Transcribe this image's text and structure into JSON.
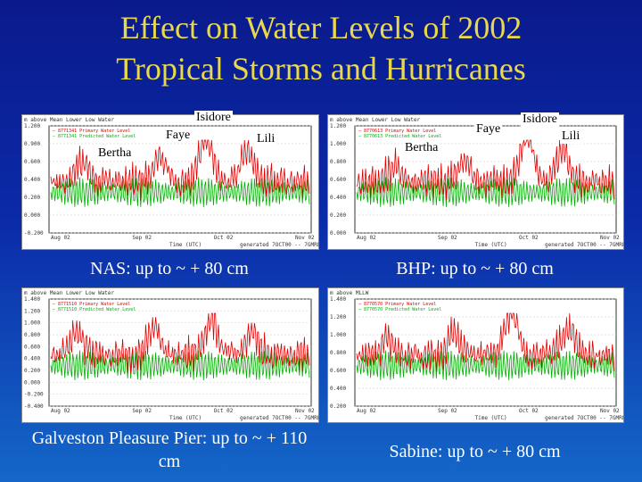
{
  "slide": {
    "title_line1": "Effect on Water Levels of 2002",
    "title_line2": "Tropical Storms and Hurricanes"
  },
  "colors": {
    "title": "#e8d84a",
    "observed": "#e00000",
    "predicted": "#00b000"
  },
  "panels": [
    {
      "id": "nas",
      "caption": "NAS: up to ~ + 80 cm",
      "ylabel": "m above Mean Lower Low Water",
      "legend": [
        "8771341 Primary Water Level",
        "8771341 Predicted Water Level"
      ],
      "yticks": [
        "1.200",
        "0.900",
        "0.600",
        "0.400",
        "0.200",
        "0.000",
        "-0.200"
      ],
      "xticks": [
        "Aug 02",
        "Sep 02",
        "Oct 02",
        "Nov 02"
      ],
      "xlabel": "Time (UTC)",
      "footer": "generated 7OCT00 -- 7GMRL4",
      "storms": [
        "Bertha",
        "Faye",
        "Isidore",
        "Lili"
      ]
    },
    {
      "id": "bhp",
      "caption": "BHP: up to ~ + 80 cm",
      "ylabel": "m above Mean Lower Low Water",
      "legend": [
        "8770613 Primary Water Level",
        "8770613 Predicted Water Level"
      ],
      "yticks": [
        "1.200",
        "1.000",
        "0.800",
        "0.600",
        "0.400",
        "0.200",
        "0.000"
      ],
      "xticks": [
        "Aug 02",
        "Sep 02",
        "Oct 02",
        "Nov 02"
      ],
      "xlabel": "Time (UTC)",
      "footer": "generated 7OCT00 -- 7GMRL4",
      "storms": [
        "Bertha",
        "Faye",
        "Isidore",
        "Lili"
      ]
    },
    {
      "id": "galveston",
      "caption": "Galveston Pleasure Pier: up to ~ + 110 cm",
      "ylabel": "m above Mean Lower Low Water",
      "legend": [
        "8771510 Primary Water Level",
        "8771510 Predicted Water Level"
      ],
      "yticks": [
        "1.400",
        "1.200",
        "1.000",
        "0.800",
        "0.600",
        "0.400",
        "0.200",
        "0.000",
        "-0.200",
        "-0.400"
      ],
      "xticks": [
        "Aug 02",
        "Sep 02",
        "Oct 02",
        "Nov 02"
      ],
      "xlabel": "Time (UTC)",
      "footer": "generated 7OCT00 -- 7GMRL4",
      "storms": []
    },
    {
      "id": "sabine",
      "caption": "Sabine: up to ~ + 80 cm",
      "ylabel": "m above MLLW",
      "legend": [
        "8770570 Primary Water Level",
        "8770570 Predicted Water Level"
      ],
      "yticks": [
        "1.400",
        "1.200",
        "1.000",
        "0.800",
        "0.600",
        "0.400",
        "0.200"
      ],
      "xticks": [
        "Aug 02",
        "Sep 02",
        "Oct 02",
        "Nov 02"
      ],
      "xlabel": "Time (UTC)",
      "footer": "generated 7OCT00 -- 7GMRL4",
      "storms": []
    }
  ]
}
